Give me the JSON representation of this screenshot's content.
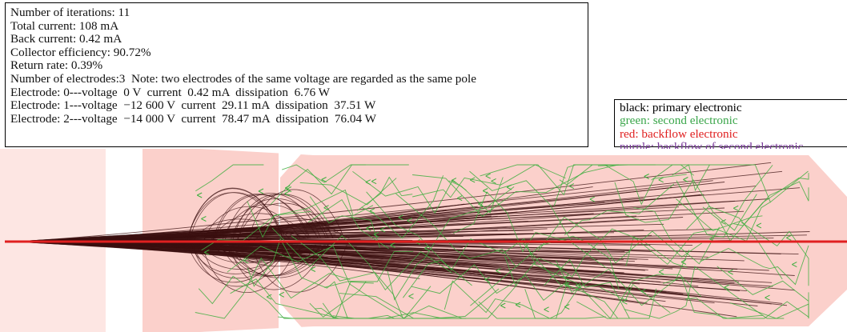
{
  "simulation": {
    "iterations_label": "Number of iterations: 11",
    "total_current_label": "Total current: 108 mA",
    "back_current_label": "Back current: 0.42 mA",
    "collector_efficiency_label": "Collector efficiency: 90.72%",
    "return_rate_label": "Return rate: 0.39%",
    "electrodes_label": "Number of electrodes:3  Note: two electrodes of the same voltage are regarded as the same pole",
    "electrodes": [
      "Electrode: 0---voltage  0 V  current  0.42 mA  dissipation  6.76 W",
      "Electrode: 1---voltage  −12 600 V  current  29.11 mA  dissipation  37.51 W",
      "Electrode: 2---voltage  −14 000 V  current  78.47 mA  dissipation  76.04 W"
    ]
  },
  "legend": {
    "items": [
      {
        "label": "black: primary electronic",
        "color": "#000000"
      },
      {
        "label": "green: second electronic",
        "color": "#3aa64a"
      },
      {
        "label": "red: backflow electronic",
        "color": "#e02020"
      },
      {
        "label": "purple: backflow of second electronic",
        "color": "#7a3a9a"
      }
    ]
  },
  "colors": {
    "electrode_fill": "#fbd0cb",
    "gap_fill": "#ffffff",
    "primary_trajectory": "#3a0f0f",
    "secondary_trajectory": "#3fae3f",
    "backflow_axis": "#e02020"
  }
}
